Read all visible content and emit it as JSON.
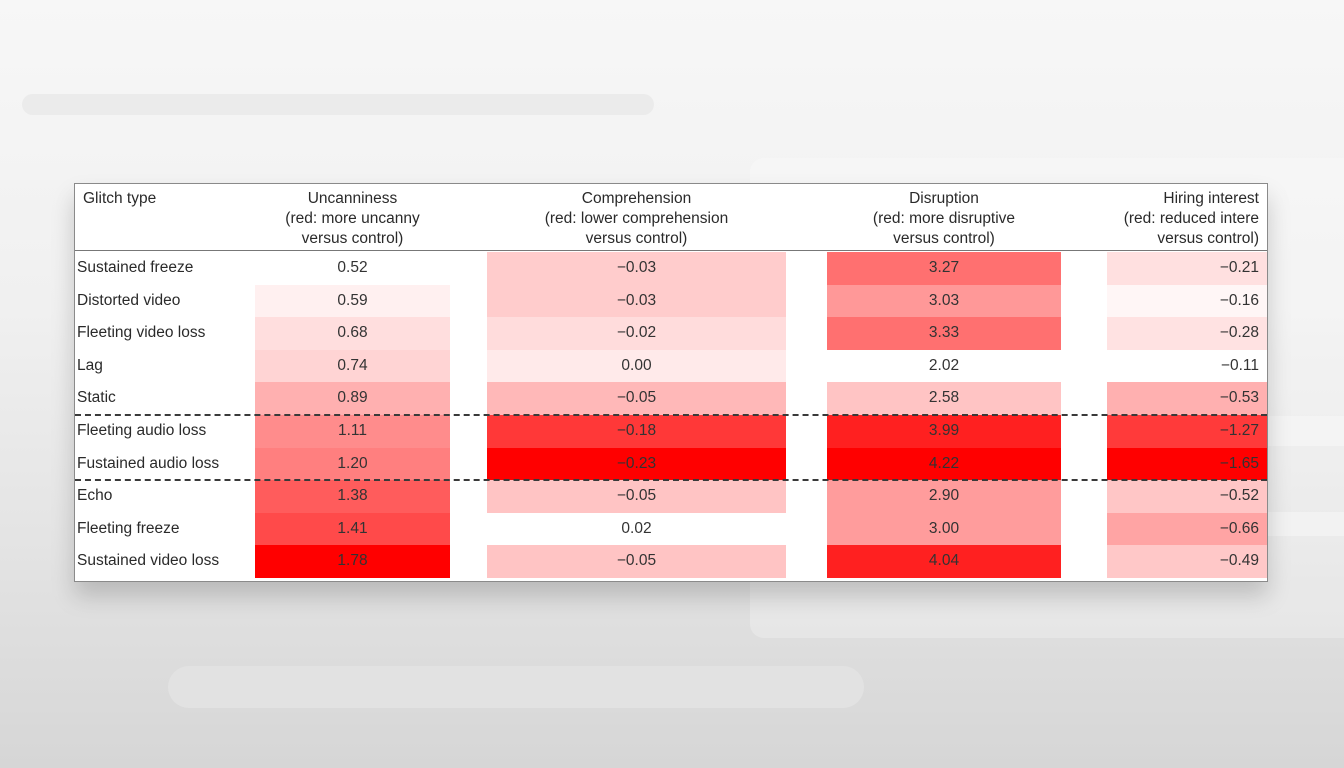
{
  "table": {
    "columns": [
      {
        "key": "glitch",
        "title": "Glitch type",
        "sub1": "",
        "sub2": ""
      },
      {
        "key": "uncanniness",
        "title": "Uncanniness",
        "sub1": "(red: more uncanny",
        "sub2": "versus control)"
      },
      {
        "key": "comprehension",
        "title": "Comprehension",
        "sub1": "(red: lower comprehension",
        "sub2": "versus control)"
      },
      {
        "key": "disruption",
        "title": "Disruption",
        "sub1": "(red: more disruptive",
        "sub2": "versus control)"
      },
      {
        "key": "hiring",
        "title": "Hiring interest",
        "sub1": "(red: reduced intere",
        "sub2": "versus control)"
      }
    ],
    "rows": [
      {
        "label": "Sustained freeze",
        "uncanniness": "0.52",
        "comprehension": "−0.03",
        "disruption": "3.27",
        "hiring": "−0.21"
      },
      {
        "label": "Distorted video",
        "uncanniness": "0.59",
        "comprehension": "−0.03",
        "disruption": "3.03",
        "hiring": "−0.16"
      },
      {
        "label": "Fleeting video loss",
        "uncanniness": "0.68",
        "comprehension": "−0.02",
        "disruption": "3.33",
        "hiring": "−0.28"
      },
      {
        "label": "Lag",
        "uncanniness": "0.74",
        "comprehension": "0.00",
        "disruption": "2.02",
        "hiring": "−0.11"
      },
      {
        "label": "Static",
        "uncanniness": "0.89",
        "comprehension": "−0.05",
        "disruption": "2.58",
        "hiring": "−0.53"
      },
      {
        "label": "Fleeting audio loss",
        "uncanniness": "1.11",
        "comprehension": "−0.18",
        "disruption": "3.99",
        "hiring": "−1.27"
      },
      {
        "label": "Fustained audio loss",
        "uncanniness": "1.20",
        "comprehension": "−0.23",
        "disruption": "4.22",
        "hiring": "−1.65"
      },
      {
        "label": "Echo",
        "uncanniness": "1.38",
        "comprehension": "−0.05",
        "disruption": "2.90",
        "hiring": "−0.52"
      },
      {
        "label": "Fleeting freeze",
        "uncanniness": "1.41",
        "comprehension": "0.02",
        "disruption": "3.00",
        "hiring": "−0.66"
      },
      {
        "label": "Sustained video loss",
        "uncanniness": "1.78",
        "comprehension": "−0.05",
        "disruption": "4.04",
        "hiring": "−0.49"
      }
    ],
    "dashed_dividers_after_rows": [
      5,
      7
    ]
  },
  "chart_data": {
    "type": "heatmap",
    "title": "",
    "row_header": "Glitch type",
    "rows": [
      "Sustained freeze",
      "Distorted video",
      "Fleeting video loss",
      "Lag",
      "Static",
      "Fleeting audio loss",
      "Fustained audio loss",
      "Echo",
      "Fleeting freeze",
      "Sustained video loss"
    ],
    "columns": [
      "Uncanniness (red: more uncanny versus control)",
      "Comprehension (red: lower comprehension versus control)",
      "Disruption (red: more disruptive versus control)",
      "Hiring interest (red: reduced interest versus control)"
    ],
    "values": [
      [
        0.52,
        -0.03,
        3.27,
        -0.21
      ],
      [
        0.59,
        -0.03,
        3.03,
        -0.16
      ],
      [
        0.68,
        -0.02,
        3.33,
        -0.28
      ],
      [
        0.74,
        0.0,
        2.02,
        -0.11
      ],
      [
        0.89,
        -0.05,
        2.58,
        -0.53
      ],
      [
        1.11,
        -0.18,
        3.99,
        -1.27
      ],
      [
        1.2,
        -0.23,
        4.22,
        -1.65
      ],
      [
        1.38,
        -0.05,
        2.9,
        -0.52
      ],
      [
        1.41,
        0.02,
        3.0,
        -0.66
      ],
      [
        1.78,
        -0.05,
        4.04,
        -0.49
      ]
    ],
    "cell_colors": [
      [
        "#ffffff",
        "#ffcccc",
        "#ff7070",
        "#ffe0e0"
      ],
      [
        "#fff0f0",
        "#ffcccc",
        "#ff9898",
        "#fff6f6"
      ],
      [
        "#ffdede",
        "#ffdcdc",
        "#ff7070",
        "#ffe2e2"
      ],
      [
        "#ffd4d4",
        "#ffeaea",
        "#ffffff",
        "#ffffff"
      ],
      [
        "#ffb0b0",
        "#ffb8b8",
        "#ffc4c4",
        "#ffb0b0"
      ],
      [
        "#ff8c8c",
        "#ff3838",
        "#ff2020",
        "#ff3a3a"
      ],
      [
        "#ff7f7f",
        "#ff0000",
        "#ff0000",
        "#ff0000"
      ],
      [
        "#ff5c5c",
        "#ffc4c4",
        "#ff9c9c",
        "#ffc6c6"
      ],
      [
        "#ff4a4a",
        "#ffffff",
        "#ff9c9c",
        "#ffa4a4"
      ],
      [
        "#ff0000",
        "#ffc4c4",
        "#ff2020",
        "#ffc8c8"
      ]
    ],
    "group_dividers": "dashed lines after row 5 (Static) and row 7 (Fustained audio loss)",
    "colormap": "white to red"
  }
}
